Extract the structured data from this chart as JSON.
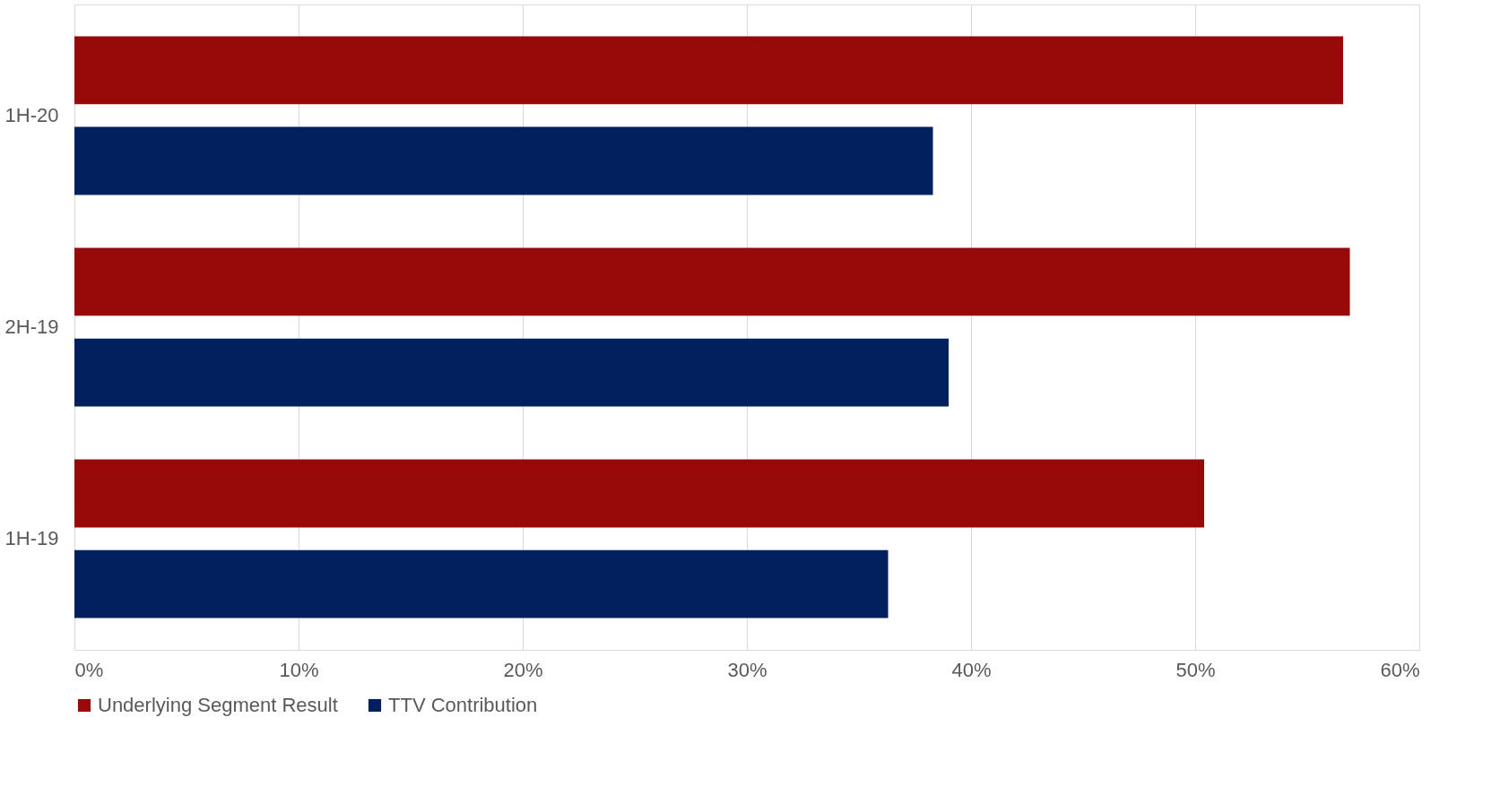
{
  "chart_data": {
    "type": "bar",
    "orientation": "horizontal",
    "categories": [
      "1H-20",
      "2H-19",
      "1H-19"
    ],
    "series": [
      {
        "name": "Underlying Segment Result",
        "color": "#970808",
        "values": [
          56.6,
          56.9,
          50.4
        ]
      },
      {
        "name": "TTV Contribution",
        "color": "#02205e",
        "values": [
          38.3,
          39.0,
          36.3
        ]
      }
    ],
    "xlim": [
      0,
      60
    ],
    "xticks": [
      {
        "value": 0,
        "label": "0%"
      },
      {
        "value": 10,
        "label": "10%"
      },
      {
        "value": 20,
        "label": "20%"
      },
      {
        "value": 30,
        "label": "30%"
      },
      {
        "value": 40,
        "label": "40%"
      },
      {
        "value": 50,
        "label": "50%"
      },
      {
        "value": 60,
        "label": "60%"
      }
    ],
    "grid": "x",
    "legend": "bottom"
  }
}
